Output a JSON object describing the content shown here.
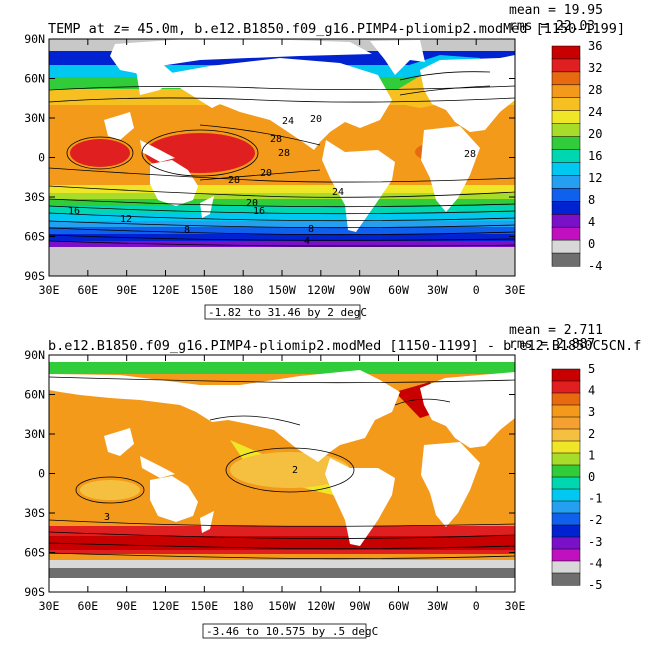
{
  "palette": {
    "land": "#ffffff",
    "ice": "#c8c8c8",
    "contour": "#000000"
  },
  "chart_data": [
    {
      "type": "heatmap",
      "title": "TEMP at z=  45.0m, b.e12.B1850.f09_g16.PIMP4-pliomip2.modMed [1150-1199]",
      "stats": [
        "mean = 19.95",
        "rms = 22.03"
      ],
      "range_label": "-1.82 to 31.46 by 2 degC",
      "xticks": [
        "30E",
        "60E",
        "90E",
        "120E",
        "150E",
        "180",
        "150W",
        "120W",
        "90W",
        "60W",
        "30W",
        "0",
        "30E"
      ],
      "yticks": [
        "90N",
        "60N",
        "30N",
        "0",
        "30S",
        "60S",
        "90S"
      ],
      "colorbar": {
        "labels": [
          "36",
          "32",
          "28",
          "24",
          "20",
          "16",
          "12",
          "8",
          "4",
          "0",
          "-4"
        ],
        "colors": [
          "#c80000",
          "#e02020",
          "#e86a10",
          "#f39a1a",
          "#f5c020",
          "#f0e628",
          "#a8dc2a",
          "#30cc3a",
          "#00d6b0",
          "#00c8f0",
          "#25a0f0",
          "#1060ee",
          "#0022d0",
          "#7a10c8",
          "#c010c0",
          "#d8d8d8",
          "#6e6e6e"
        ]
      },
      "contour_labels": [
        "24",
        "20",
        "28",
        "28",
        "28",
        "20",
        "24",
        "20",
        "16",
        "16",
        "12",
        "8",
        "8",
        "4",
        "28"
      ]
    },
    {
      "type": "heatmap",
      "title": "b.e12.B1850.f09_g16.PIMP4-pliomip2.modMed [1150-1199] - b.e12.B1850C5CN.f",
      "stats": [
        "mean = 2.711",
        "rms = 2.887"
      ],
      "range_label": "-3.46 to 10.575 by .5 degC",
      "xticks": [
        "30E",
        "60E",
        "90E",
        "120E",
        "150E",
        "180",
        "150W",
        "120W",
        "90W",
        "60W",
        "30W",
        "0",
        "30E"
      ],
      "yticks": [
        "90N",
        "60N",
        "30N",
        "0",
        "30S",
        "60S",
        "90S"
      ],
      "colorbar": {
        "labels": [
          "5",
          "4",
          "3",
          "2",
          "1",
          "0",
          "-1",
          "-2",
          "-3",
          "-4",
          "-5"
        ],
        "colors": [
          "#c80000",
          "#e02020",
          "#e86a10",
          "#f39a1a",
          "#f5a030",
          "#f5c040",
          "#f0e628",
          "#a8dc2a",
          "#30cc3a",
          "#00d6b0",
          "#00c8f0",
          "#25a0f0",
          "#1060ee",
          "#0022d0",
          "#7a10c8",
          "#c010c0",
          "#d8d8d8",
          "#6e6e6e"
        ]
      },
      "contour_labels": [
        "2",
        "3"
      ]
    }
  ]
}
